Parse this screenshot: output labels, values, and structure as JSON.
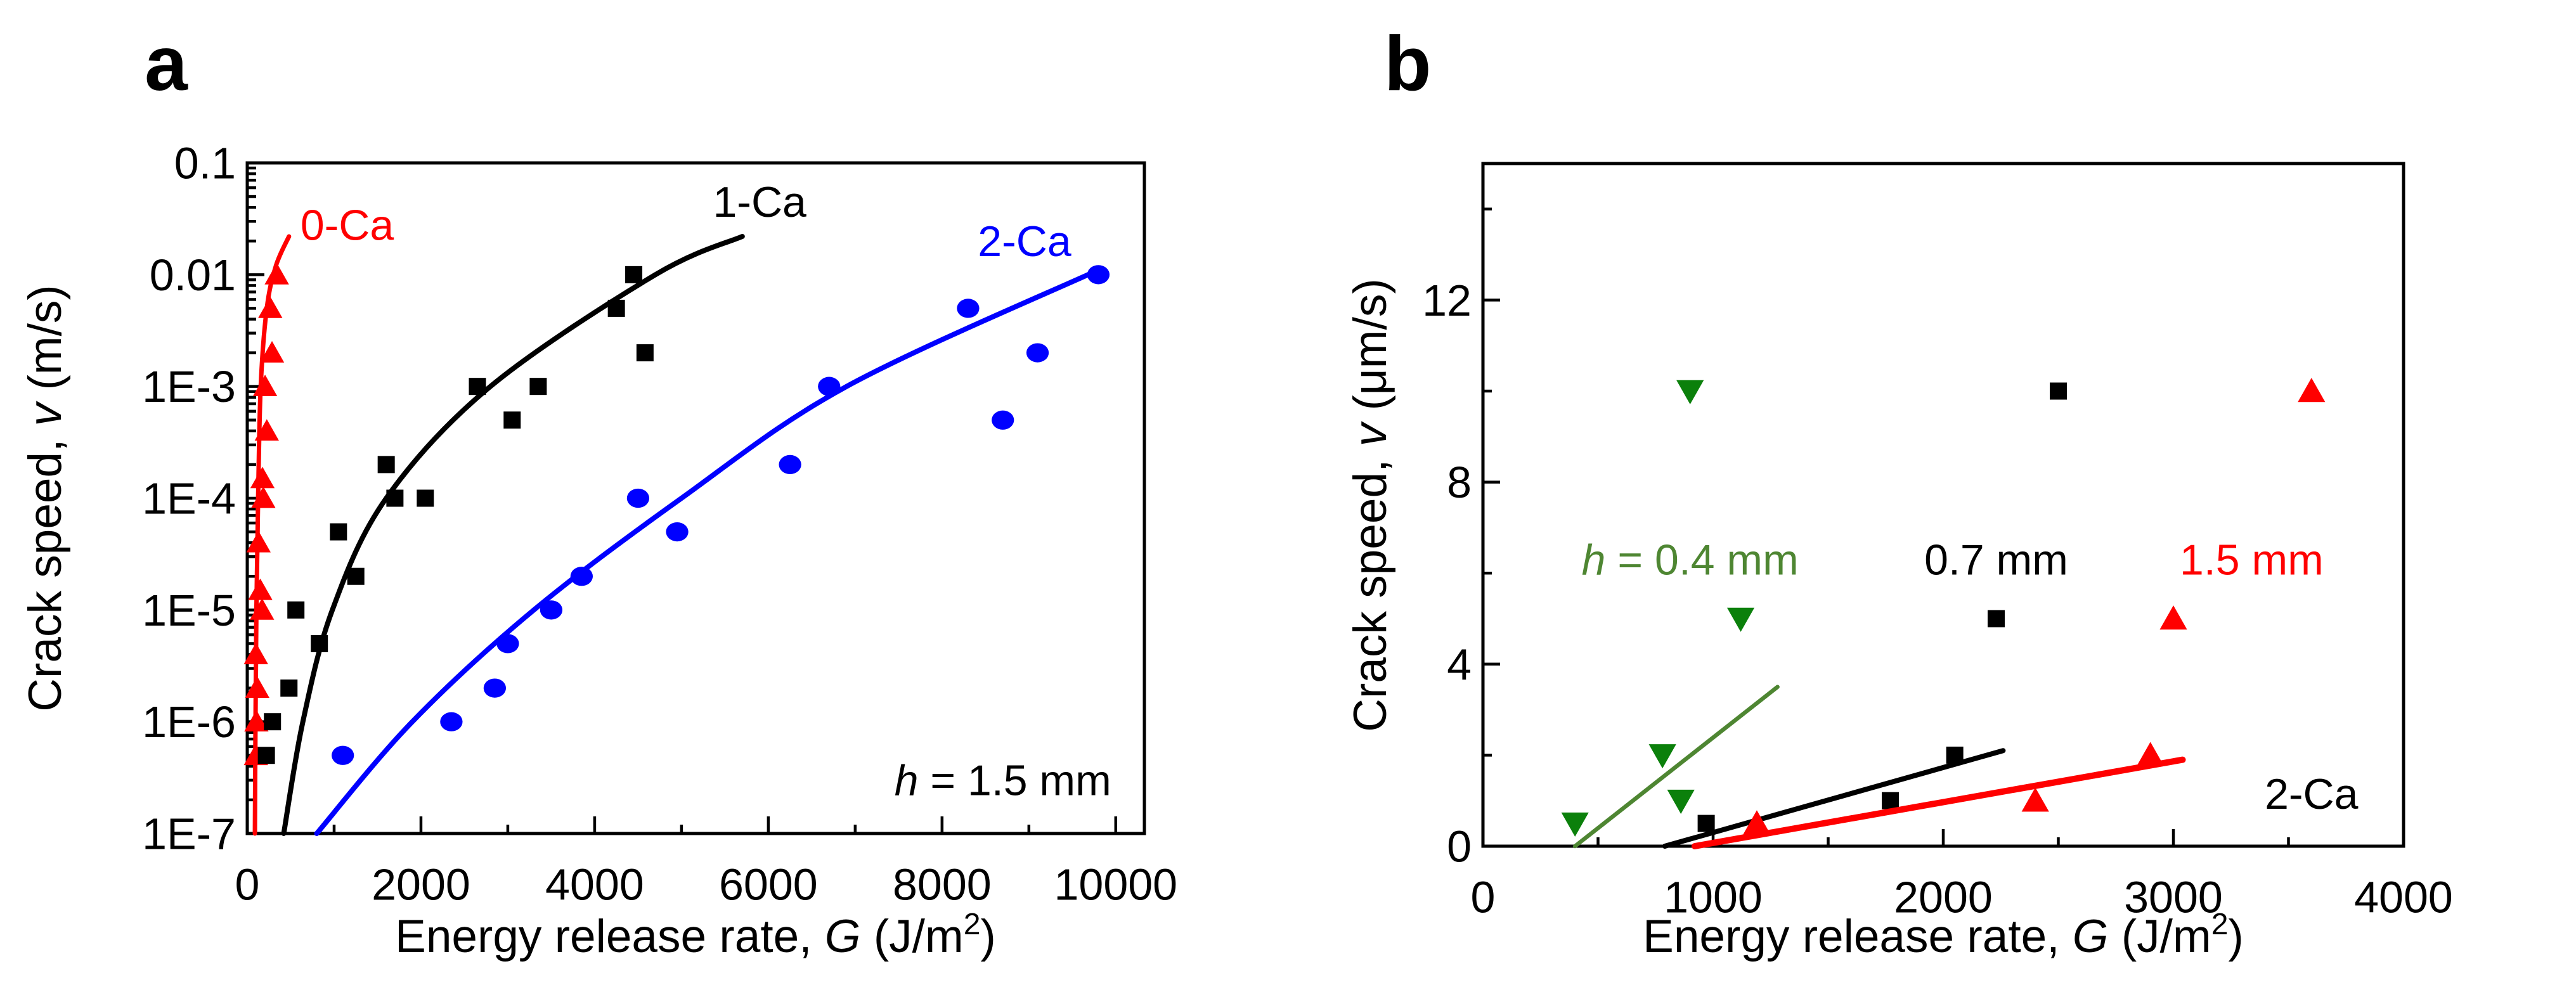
{
  "figure": {
    "panel_a": "a",
    "panel_b": "b"
  },
  "colors": {
    "red": "#ff0000",
    "black": "#000000",
    "blue": "#0000ff",
    "green": "#0b800b",
    "green_line": "#4e8632",
    "background": "#ffffff"
  },
  "chart_data": [
    {
      "id": "a",
      "type": "scatter",
      "xlabel": {
        "pre": "Energy release rate, ",
        "sym": "G",
        "mid": " (J/m",
        "sup": "2",
        "end": ")"
      },
      "ylabel": {
        "pre": "Crack speed, ",
        "sym": "v",
        "end": " (m/s)"
      },
      "x_axis": {
        "min": 0,
        "max": 10330,
        "major_ticks": [
          0,
          2000,
          4000,
          6000,
          8000,
          10000
        ],
        "tick_labels": [
          "0",
          "2000",
          "4000",
          "6000",
          "8000",
          "10000"
        ],
        "minor_step": 1000,
        "minor_max": 10000
      },
      "y_axis": {
        "scale": "log",
        "min": 1e-07,
        "max": 0.1,
        "decades": [
          0.1,
          0.01,
          0.001,
          0.0001,
          1e-05,
          1e-06,
          1e-07
        ],
        "decade_labels": [
          "0.1",
          "0.01",
          "1E-3",
          "1E-4",
          "1E-5",
          "1E-6",
          "1E-7"
        ]
      },
      "series": [
        {
          "name": "0-Ca",
          "marker": "triangle-up",
          "color": "red",
          "line_color": "red",
          "points": [
            [
              100,
              5e-07
            ],
            [
              105,
              1e-06
            ],
            [
              115,
              2e-06
            ],
            [
              100,
              4e-06
            ],
            [
              170,
              1e-05
            ],
            [
              150,
              1.5e-05
            ],
            [
              130,
              4e-05
            ],
            [
              185,
              0.0001
            ],
            [
              175,
              0.00015
            ],
            [
              225,
              0.0004
            ],
            [
              205,
              0.001
            ],
            [
              285,
              0.002
            ],
            [
              265,
              0.005
            ],
            [
              340,
              0.01
            ]
          ],
          "fit_line": [
            [
              88,
              1e-07
            ],
            [
              95,
              1e-06
            ],
            [
              105,
              1e-05
            ],
            [
              125,
              0.0001
            ],
            [
              155,
              0.001
            ],
            [
              225,
              0.005
            ],
            [
              330,
              0.012
            ],
            [
              480,
              0.022
            ]
          ]
        },
        {
          "name": "1-Ca",
          "marker": "square",
          "color": "black",
          "line_color": "black",
          "points": [
            [
              220,
              5e-07
            ],
            [
              290,
              1e-06
            ],
            [
              480,
              2e-06
            ],
            [
              830,
              5e-06
            ],
            [
              560,
              1e-05
            ],
            [
              1250,
              2e-05
            ],
            [
              1050,
              5e-05
            ],
            [
              1700,
              0.0001
            ],
            [
              2050,
              0.0001
            ],
            [
              1600,
              0.0002
            ],
            [
              2650,
              0.001
            ],
            [
              3350,
              0.001
            ],
            [
              3050,
              0.0005
            ],
            [
              4250,
              0.005
            ],
            [
              4450,
              0.01
            ],
            [
              4580,
              0.002
            ]
          ],
          "fit_line": [
            [
              420,
              1e-07
            ],
            [
              640,
              1e-06
            ],
            [
              980,
              1e-05
            ],
            [
              1600,
              0.0001
            ],
            [
              2800,
              0.001
            ],
            [
              4700,
              0.01
            ],
            [
              5700,
              0.022
            ]
          ]
        },
        {
          "name": "2-Ca",
          "marker": "circle",
          "color": "blue",
          "line_color": "blue",
          "points": [
            [
              1100,
              5e-07
            ],
            [
              2350,
              1e-06
            ],
            [
              2850,
              2e-06
            ],
            [
              3000,
              5e-06
            ],
            [
              3500,
              1e-05
            ],
            [
              3850,
              2e-05
            ],
            [
              4950,
              5e-05
            ],
            [
              4500,
              0.0001
            ],
            [
              6250,
              0.0002
            ],
            [
              8700,
              0.0005
            ],
            [
              6700,
              0.001
            ],
            [
              9100,
              0.002
            ],
            [
              8300,
              0.005
            ],
            [
              9800,
              0.01
            ]
          ],
          "fit_line": [
            [
              800,
              1e-07
            ],
            [
              1900,
              1e-06
            ],
            [
              3300,
              1e-05
            ],
            [
              5000,
              0.0001
            ],
            [
              6900,
              0.001
            ],
            [
              9800,
              0.011
            ]
          ]
        }
      ],
      "annotations": [
        {
          "text": "0-Ca",
          "color": "red",
          "x": 1150,
          "y": 0.028
        },
        {
          "text": "1-Ca",
          "color": "black",
          "x": 5900,
          "y": 0.045
        },
        {
          "text": "2-Ca",
          "color": "blue",
          "x": 8950,
          "y": 0.02
        },
        {
          "sym": "h",
          "text": " = 1.5 mm",
          "color": "black",
          "x": 8700,
          "y": 3e-07
        }
      ]
    },
    {
      "id": "b",
      "type": "scatter",
      "xlabel": {
        "pre": "Energy release rate, ",
        "sym": "G",
        "mid": " (J/m",
        "sup": "2",
        "end": ")"
      },
      "ylabel": {
        "pre": "Crack speed, ",
        "sym": "v",
        "end": " (μm/s)"
      },
      "x_axis": {
        "min": 0,
        "max": 4000,
        "major_ticks": [
          0,
          1000,
          2000,
          3000,
          4000
        ],
        "tick_labels": [
          "0",
          "1000",
          "2000",
          "3000",
          "4000"
        ],
        "minor_step": 500,
        "minor_max": 4000
      },
      "y_axis": {
        "scale": "linear",
        "min": 0,
        "max": 15,
        "major_ticks": [
          0,
          4,
          8,
          12
        ],
        "tick_labels": [
          "0",
          "4",
          "8",
          "12"
        ],
        "minor_step": 2,
        "minor_max": 14
      },
      "series": [
        {
          "name": "h = 0.4 mm",
          "marker": "triangle-down",
          "color": "green",
          "line_color": "green_line",
          "points": [
            [
              400,
              0.5
            ],
            [
              780,
              2
            ],
            [
              860,
              1
            ],
            [
              1120,
              5
            ],
            [
              900,
              10
            ]
          ],
          "fit_line": [
            [
              400,
              0
            ],
            [
              1280,
              3.5
            ]
          ]
        },
        {
          "name": "0.7 mm",
          "marker": "square",
          "color": "black",
          "line_color": "black",
          "points": [
            [
              970,
              0.5
            ],
            [
              1770,
              1
            ],
            [
              2050,
              2
            ],
            [
              2230,
              5
            ],
            [
              2500,
              10
            ]
          ],
          "fit_line": [
            [
              790,
              0
            ],
            [
              2260,
              2.1
            ]
          ]
        },
        {
          "name": "1.5 mm",
          "marker": "triangle-up",
          "color": "red",
          "line_color": "red",
          "points": [
            [
              1190,
              0.5
            ],
            [
              2400,
              1
            ],
            [
              2900,
              2
            ],
            [
              3000,
              5
            ],
            [
              3600,
              10
            ]
          ],
          "fit_line": [
            [
              920,
              0
            ],
            [
              3040,
              1.9
            ]
          ]
        }
      ],
      "annotations": [
        {
          "sym": "h",
          "text": " = 0.4 mm",
          "color": "green_line",
          "x": 900,
          "y": 6.3
        },
        {
          "text": "0.7 mm",
          "color": "black",
          "x": 2230,
          "y": 6.3
        },
        {
          "text": "1.5 mm",
          "color": "red",
          "x": 3340,
          "y": 6.3
        },
        {
          "text": "2-Ca",
          "color": "black",
          "x": 3600,
          "y": 1.15
        }
      ]
    }
  ]
}
